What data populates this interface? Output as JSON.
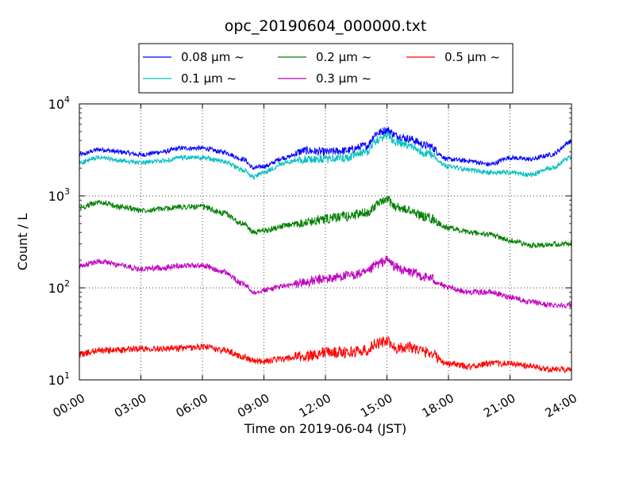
{
  "chart_data": {
    "type": "line",
    "title": "opc_20190604_000000.txt",
    "xlabel": "Time on 2019-06-04 (JST)",
    "ylabel": "Count / L",
    "yscale": "log",
    "ylim": [
      10,
      10000
    ],
    "xlim": [
      "00:00",
      "24:00"
    ],
    "x_ticks": [
      "00:00",
      "03:00",
      "06:00",
      "09:00",
      "12:00",
      "15:00",
      "18:00",
      "21:00",
      "24:00"
    ],
    "y_ticks": [
      {
        "base": "10",
        "exp": "1"
      },
      {
        "base": "10",
        "exp": "2"
      },
      {
        "base": "10",
        "exp": "3"
      },
      {
        "base": "10",
        "exp": "4"
      }
    ],
    "grid": true,
    "legend_position": "top-center",
    "x": [
      "00:00",
      "01:00",
      "02:00",
      "03:00",
      "04:00",
      "05:00",
      "06:00",
      "07:00",
      "08:00",
      "08:30",
      "09:00",
      "10:00",
      "11:00",
      "12:00",
      "13:00",
      "14:00",
      "14:30",
      "15:00",
      "15:30",
      "16:00",
      "17:00",
      "18:00",
      "19:00",
      "20:00",
      "21:00",
      "22:00",
      "23:00",
      "24:00"
    ],
    "series": [
      {
        "name": "0.08 μm ~",
        "color": "#0000ff",
        "noise": 0.05,
        "values": [
          2800,
          3200,
          3000,
          2800,
          3000,
          3300,
          3300,
          3000,
          2500,
          2000,
          2100,
          2600,
          3100,
          3000,
          3100,
          3500,
          4800,
          5200,
          4500,
          4200,
          3500,
          2500,
          2400,
          2200,
          2600,
          2500,
          2800,
          3900
        ]
      },
      {
        "name": "0.1 μm ~",
        "color": "#00bfbf",
        "noise": 0.05,
        "values": [
          2300,
          2600,
          2400,
          2300,
          2400,
          2600,
          2600,
          2400,
          1900,
          1600,
          1800,
          2300,
          2500,
          2500,
          2600,
          3000,
          4000,
          4500,
          3800,
          3500,
          2900,
          2100,
          1900,
          1800,
          1800,
          1700,
          2000,
          2600
        ]
      },
      {
        "name": "0.2 μm ~",
        "color": "#008000",
        "noise": 0.06,
        "values": [
          750,
          850,
          760,
          700,
          720,
          760,
          760,
          650,
          500,
          400,
          420,
          470,
          520,
          560,
          600,
          650,
          800,
          900,
          750,
          700,
          580,
          450,
          400,
          380,
          330,
          290,
          300,
          300
        ]
      },
      {
        "name": "0.3 μm ~",
        "color": "#bf00bf",
        "noise": 0.06,
        "values": [
          170,
          195,
          175,
          160,
          165,
          175,
          175,
          150,
          110,
          90,
          95,
          105,
          115,
          125,
          135,
          145,
          180,
          200,
          165,
          150,
          130,
          100,
          90,
          90,
          80,
          70,
          65,
          65
        ]
      },
      {
        "name": "0.5 μm ~",
        "color": "#ff0000",
        "noise": 0.07,
        "values": [
          19,
          21,
          21,
          22,
          22,
          22,
          23,
          21,
          18,
          16,
          16,
          17,
          18,
          20,
          20,
          21,
          25,
          26,
          22,
          23,
          20,
          15,
          14,
          15,
          15,
          14,
          13,
          13
        ]
      }
    ]
  }
}
